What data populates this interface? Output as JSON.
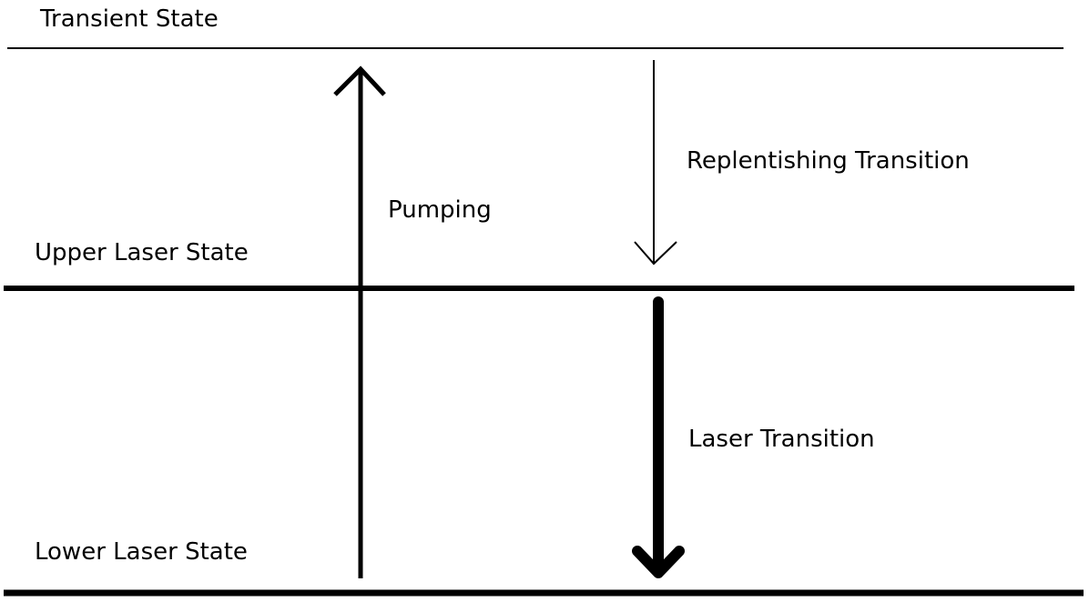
{
  "levels": {
    "transient": "Transient State",
    "upper": "Upper Laser State",
    "lower": "Lower Laser State"
  },
  "transitions": {
    "pumping": "Pumping",
    "replenishing": "Replentishing Transition",
    "laser": "Laser Transition"
  },
  "colors": {
    "ink": "#000000",
    "background": "#ffffff"
  }
}
